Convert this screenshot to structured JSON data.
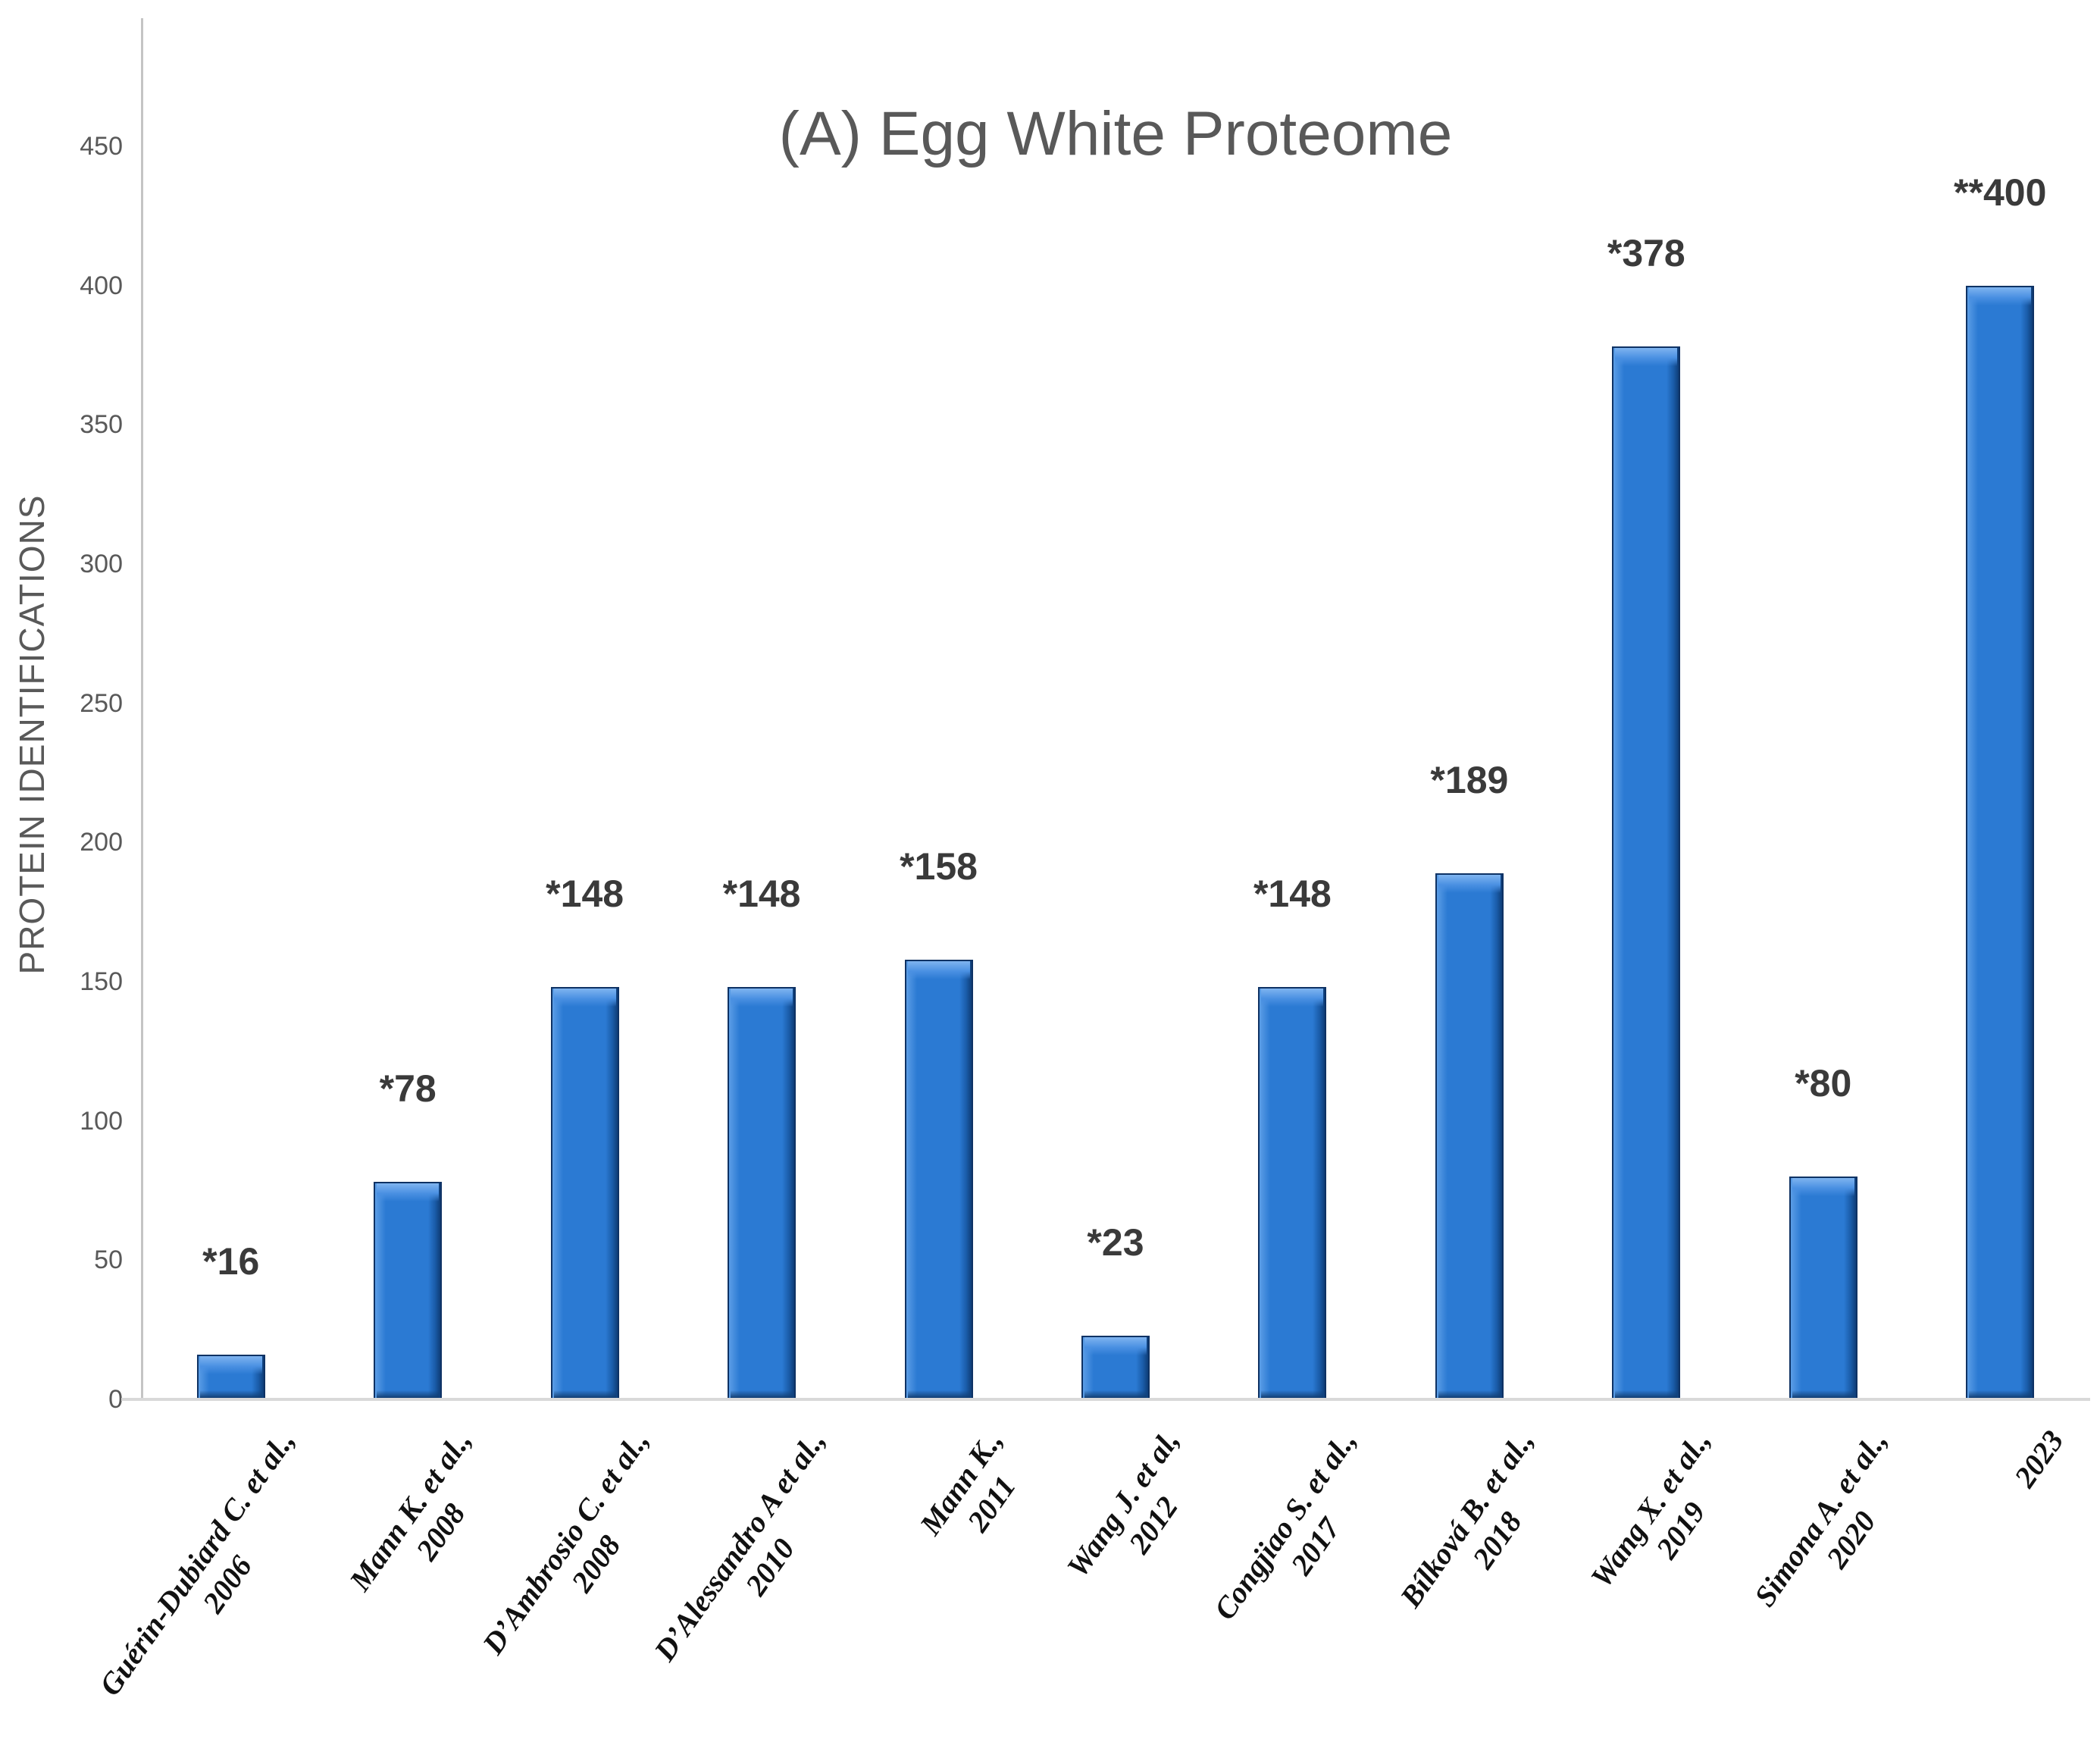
{
  "title": "(A) Egg White Proteome",
  "y_axis": {
    "label": "PROTEIN IDENTIFICATIONS",
    "ticks": [
      0,
      50,
      100,
      150,
      200,
      250,
      300,
      350,
      400,
      450
    ]
  },
  "chart_data": {
    "type": "bar",
    "title": "(A) Egg White Proteome",
    "ylabel": "PROTEIN IDENTIFICATIONS",
    "ylim": [
      0,
      495
    ],
    "yticks": [
      0,
      50,
      100,
      150,
      200,
      250,
      300,
      350,
      400,
      450
    ],
    "grid": false,
    "legend": "none",
    "categories": [
      {
        "name": "Guérin-Dubiard C. et al.,",
        "year": "2006"
      },
      {
        "name": "Mann K. et al.,",
        "year": "2008"
      },
      {
        "name": "D’Ambrosio C. et al.,",
        "year": "2008"
      },
      {
        "name": "D’Alessandro A et al.,",
        "year": "2010"
      },
      {
        "name": "Mann K.,",
        "year": "2011"
      },
      {
        "name": "Wang J. et al,",
        "year": "2012"
      },
      {
        "name": "Congjiao S. et al.,",
        "year": "2017"
      },
      {
        "name": "Bílková B. et al.,",
        "year": "2018"
      },
      {
        "name": "Wang X. et al.,",
        "year": "2019"
      },
      {
        "name": "Simona A. et al.,",
        "year": "2020"
      },
      {
        "name": "",
        "year": "2023"
      }
    ],
    "values": [
      16,
      78,
      148,
      148,
      158,
      23,
      148,
      189,
      378,
      80,
      400
    ],
    "bar_labels": [
      "*16",
      "*78",
      "*148",
      "*148",
      "*158",
      "*23",
      "*148",
      "*189",
      "*378",
      "*80",
      "**400"
    ]
  },
  "colors": {
    "bar_fill": "#2b7ad3",
    "bar_highlight": "#7fb4f0",
    "bar_shadow": "#0f3e78",
    "bar_border": "#0e3264",
    "title_text": "#595959",
    "axis_text": "#595959",
    "data_label_text": "#3a3a3a",
    "x_label_text": "#111111",
    "y_axis_line": "#c4c4c4",
    "x_axis_line": "#d9d9d9",
    "background": "#ffffff"
  }
}
